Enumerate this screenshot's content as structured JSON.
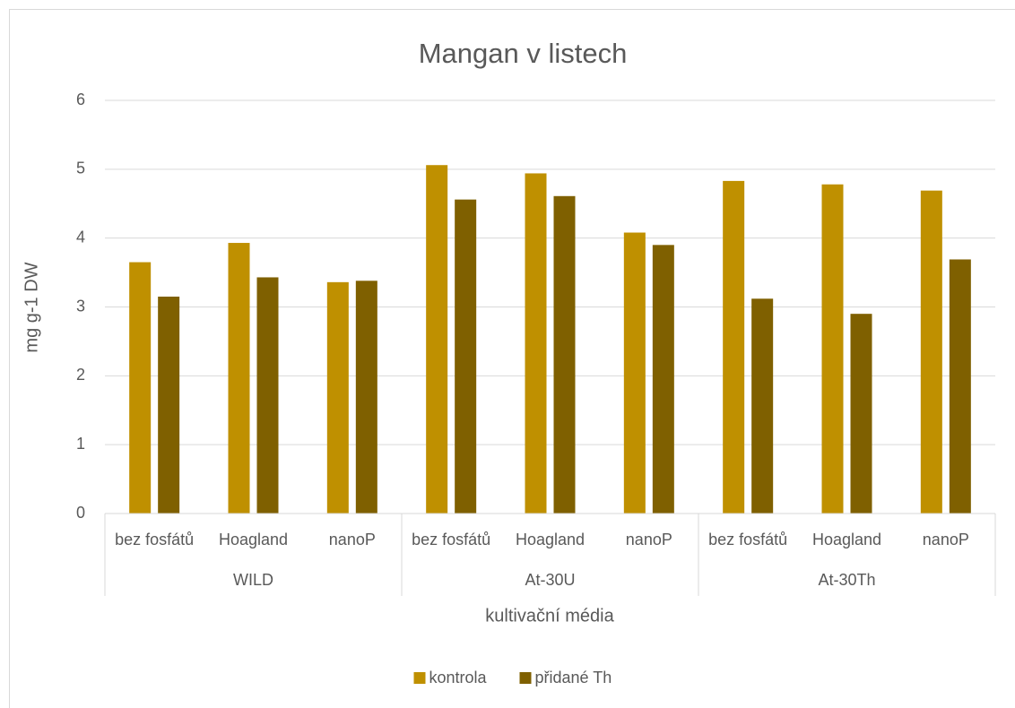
{
  "chart_data": {
    "type": "bar",
    "title": "Mangan v listech",
    "y_label": "mg g-1 DW",
    "x_label": "kultivační média",
    "groups": [
      {
        "name": "WILD",
        "categories": [
          "bez fosfátů",
          "Hoagland",
          "nanoP"
        ]
      },
      {
        "name": "At-30U",
        "categories": [
          "bez fosfátů",
          "Hoagland",
          "nanoP"
        ]
      },
      {
        "name": "At-30Th",
        "categories": [
          "bez fosfátů",
          "Hoagland",
          "nanoP"
        ]
      }
    ],
    "series": [
      {
        "name": "kontrola",
        "color": "#bf9000",
        "values": [
          3.65,
          3.93,
          3.36,
          5.06,
          4.94,
          4.08,
          4.83,
          4.78,
          4.69
        ]
      },
      {
        "name": "přidané Th",
        "color": "#7f6000",
        "values": [
          3.15,
          3.43,
          3.38,
          4.56,
          4.61,
          3.9,
          3.12,
          2.9,
          3.69
        ]
      }
    ],
    "ylim": [
      0,
      6
    ],
    "yticks": [
      0,
      1,
      2,
      3,
      4,
      5,
      6
    ],
    "grid": true,
    "legend": "bottom"
  }
}
